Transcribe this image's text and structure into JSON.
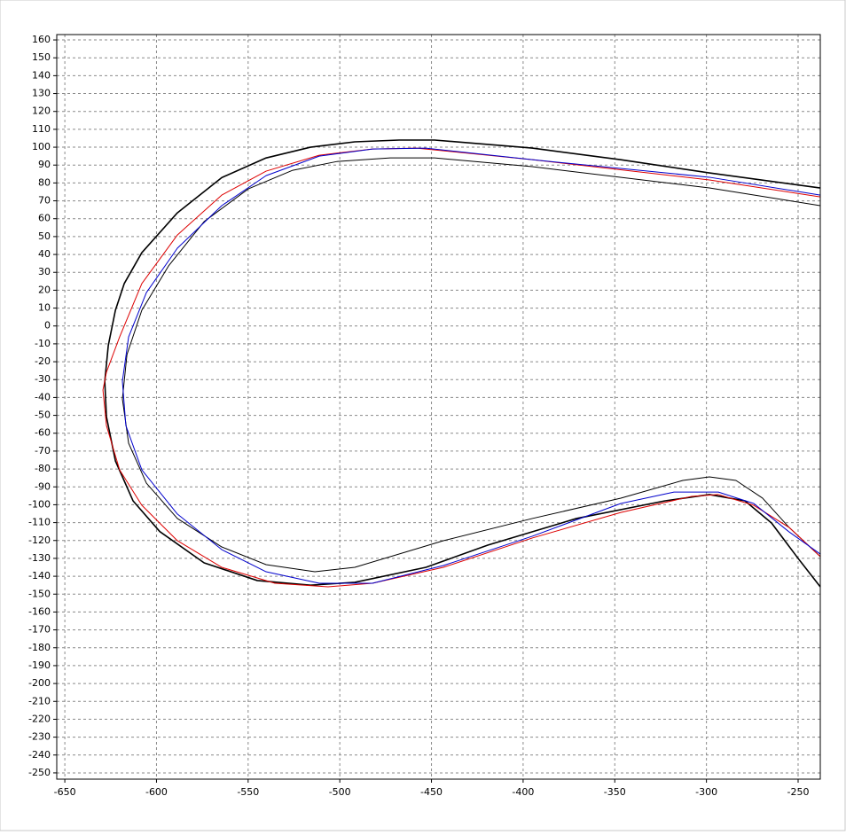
{
  "chart_data": {
    "type": "line",
    "grid": true,
    "xlim": [
      -654.4,
      -237.9
    ],
    "ylim": [
      -253.5,
      163
    ],
    "xticks": [
      -650,
      -600,
      -550,
      -500,
      -450,
      -400,
      -350,
      -300,
      -250
    ],
    "yticks": [
      160,
      150,
      140,
      130,
      120,
      110,
      100,
      90,
      80,
      70,
      60,
      50,
      40,
      30,
      20,
      10,
      0,
      -10,
      -20,
      -30,
      -40,
      -50,
      -60,
      -70,
      -80,
      -90,
      -100,
      -110,
      -120,
      -130,
      -140,
      -150,
      -160,
      -170,
      -180,
      -190,
      -200,
      -210,
      -220,
      -230,
      -240,
      -250
    ],
    "series": [
      {
        "color": "#000000",
        "x": [
          -237.9,
          -298.4,
          -346.7,
          -395,
          -448.3,
          -467.6,
          -491.8,
          -516,
          -540.2,
          -564.4,
          -588.6,
          -608,
          -617.6,
          -622.4,
          -626.3,
          -628.2,
          -627.3,
          -622.4,
          -612.8,
          -598.2,
          -574,
          -545,
          -516,
          -491.8,
          -453,
          -419.3,
          -370.9,
          -322.6,
          -298.4,
          -279,
          -264.5,
          -250,
          -237.9
        ],
        "values": [
          77.2,
          85.6,
          93,
          99.5,
          104,
          104,
          103,
          100,
          94,
          83,
          63.3,
          41,
          23.7,
          8.8,
          -11,
          -31,
          -50.7,
          -75.5,
          -97.8,
          -115,
          -132.5,
          -142.4,
          -145,
          -143.4,
          -135,
          -122.6,
          -107.7,
          -97.8,
          -94.3,
          -97.8,
          -110.2,
          -130,
          -145.9
        ]
      },
      {
        "color": "#000000",
        "x": [
          -237.9,
          -298.4,
          -395,
          -448.3,
          -472.5,
          -501.5,
          -525.7,
          -549.9,
          -574,
          -593.4,
          -608,
          -616.1,
          -618.6,
          -615.2,
          -605.5,
          -588.6,
          -564.4,
          -540.2,
          -513.6,
          -491.8,
          -443.5,
          -395,
          -346.7,
          -312.9,
          -298.4,
          -283.9,
          -269.4,
          -254.9,
          -237.9
        ],
        "values": [
          67.3,
          77.2,
          89.1,
          94,
          94,
          92,
          87.1,
          76.7,
          58.4,
          33.6,
          8.8,
          -16,
          -40.8,
          -65.6,
          -87.9,
          -107.7,
          -123.6,
          -133.5,
          -137.5,
          -135,
          -120.1,
          -107.7,
          -96.3,
          -86.4,
          -84.4,
          -86.4,
          -96.3,
          -112.7,
          -129
        ]
      },
      {
        "color": "#dd0000",
        "x": [
          -237.9,
          -298.4,
          -395,
          -457.9,
          -482.2,
          -511.2,
          -540.2,
          -564.4,
          -588.6,
          -608,
          -620.1,
          -627.3,
          -629.2,
          -627.3,
          -620.1,
          -608,
          -588.6,
          -564.4,
          -535.4,
          -506.4,
          -482.2,
          -443.5,
          -395,
          -346.7,
          -308,
          -293.5,
          -274.2,
          -254.9,
          -237.9
        ],
        "values": [
          72.2,
          81.7,
          93,
          99.5,
          99,
          95.5,
          86.6,
          73.2,
          50.9,
          23.7,
          -6.1,
          -25.9,
          -35.8,
          -55.7,
          -80.5,
          -100.3,
          -120.1,
          -135,
          -143.9,
          -145.9,
          -143.9,
          -135,
          -118.6,
          -104.3,
          -95.3,
          -94.3,
          -100.3,
          -112.7,
          -129
        ]
      },
      {
        "color": "#0000cc",
        "x": [
          -237.9,
          -298.4,
          -395,
          -453.1,
          -482.2,
          -511.2,
          -540.2,
          -564.4,
          -588.6,
          -605.5,
          -615.2,
          -618.6,
          -616.7,
          -608,
          -588.6,
          -564.4,
          -540.2,
          -511.2,
          -482.2,
          -443.5,
          -395,
          -346.7,
          -317.7,
          -293.5,
          -274.2,
          -254.9,
          -237.9
        ],
        "values": [
          73.2,
          83.2,
          93,
          99.5,
          99,
          95,
          84.1,
          67.3,
          43.5,
          18.7,
          -6.1,
          -30.9,
          -55.7,
          -80.5,
          -105.2,
          -125.1,
          -137.5,
          -143.9,
          -143.9,
          -134,
          -117.6,
          -99.3,
          -92.9,
          -92.9,
          -99.3,
          -115.2,
          -127.6
        ]
      }
    ]
  }
}
